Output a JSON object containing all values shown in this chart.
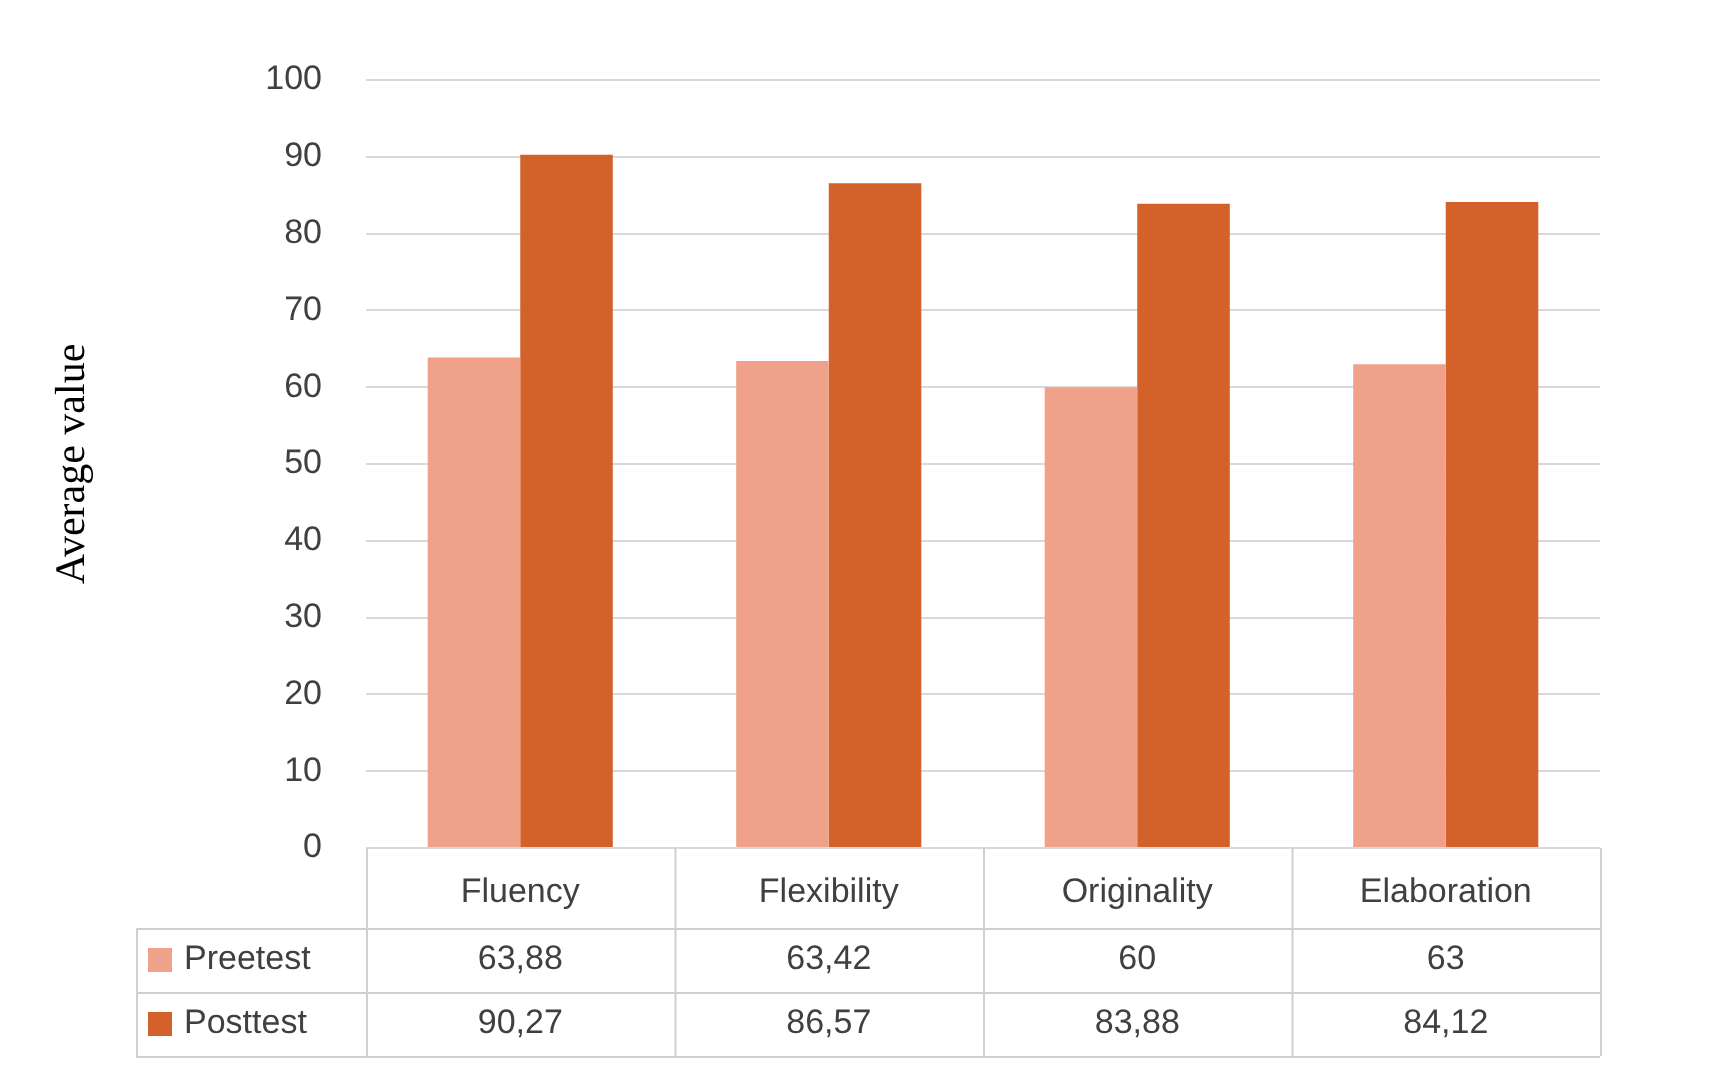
{
  "chart_data": {
    "type": "bar",
    "ylabel": "Average value",
    "categories": [
      "Fluency",
      "Flexibility",
      "Originality",
      "Elaboration"
    ],
    "series": [
      {
        "name": "Preetest",
        "color": "#f0a18a",
        "values": [
          63.88,
          63.42,
          60,
          63
        ],
        "value_labels": [
          "63,88",
          "63,42",
          "60",
          "63"
        ]
      },
      {
        "name": "Posttest",
        "color": "#d2622a",
        "values": [
          90.27,
          86.57,
          83.88,
          84.12
        ],
        "value_labels": [
          "90,27",
          "86,57",
          "83,88",
          "84,12"
        ]
      }
    ],
    "ylim": [
      0,
      100
    ],
    "yticks": [
      0,
      10,
      20,
      30,
      40,
      50,
      60,
      70,
      80,
      90,
      100
    ],
    "grid": "y",
    "legend": "bottom"
  }
}
